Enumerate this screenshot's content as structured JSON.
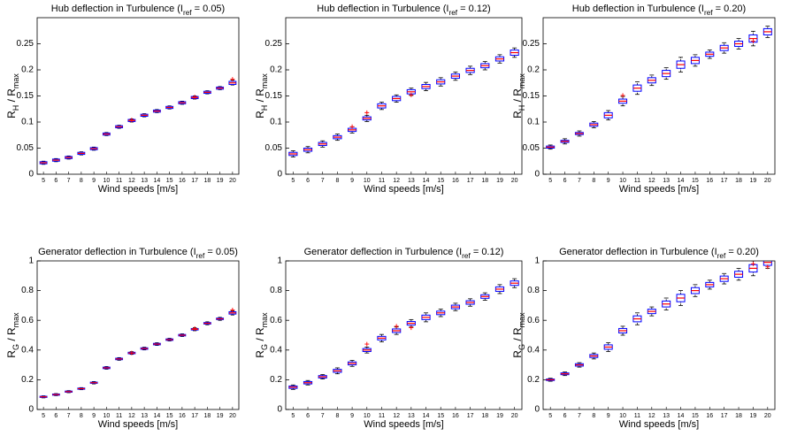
{
  "chart_data": [
    {
      "type": "box",
      "title": [
        "Hub deflection in Turbulence (I",
        "ref",
        " = 0.05)"
      ],
      "xlabel": "Wind speeds [m/s]",
      "ylabel": [
        "R",
        "H",
        " / R",
        "max"
      ],
      "categories": [
        5,
        6,
        7,
        8,
        9,
        10,
        11,
        12,
        13,
        14,
        15,
        16,
        17,
        18,
        19,
        20
      ],
      "boxes": [
        [
          0.019,
          0.02,
          0.022,
          0.024,
          0.025
        ],
        [
          0.024,
          0.025,
          0.027,
          0.029,
          0.03
        ],
        [
          0.029,
          0.03,
          0.032,
          0.034,
          0.035
        ],
        [
          0.037,
          0.038,
          0.04,
          0.042,
          0.043
        ],
        [
          0.046,
          0.047,
          0.049,
          0.051,
          0.052
        ],
        [
          0.074,
          0.075,
          0.077,
          0.079,
          0.08
        ],
        [
          0.088,
          0.089,
          0.091,
          0.093,
          0.094
        ],
        [
          0.1,
          0.101,
          0.103,
          0.105,
          0.106
        ],
        [
          0.11,
          0.111,
          0.113,
          0.115,
          0.116
        ],
        [
          0.118,
          0.119,
          0.121,
          0.123,
          0.124
        ],
        [
          0.125,
          0.126,
          0.128,
          0.13,
          0.131
        ],
        [
          0.134,
          0.135,
          0.137,
          0.139,
          0.14
        ],
        [
          0.144,
          0.145,
          0.147,
          0.149,
          0.15
        ],
        [
          0.154,
          0.155,
          0.157,
          0.159,
          0.16
        ],
        [
          0.162,
          0.163,
          0.165,
          0.167,
          0.168
        ],
        [
          0.171,
          0.172,
          0.175,
          0.178,
          0.18
        ]
      ],
      "outliers": {
        "categories": [
          12,
          17,
          20
        ],
        "values": [
          0.104,
          0.148,
          0.182
        ]
      },
      "ylim": [
        0,
        0.3
      ],
      "yticks": [
        0,
        0.05,
        0.1,
        0.15,
        0.2,
        0.25
      ],
      "box_color": "#0000ff",
      "median_color": "#ff0000",
      "whisker_color": "#000000",
      "outlier_color": "#ff0000"
    },
    {
      "type": "box",
      "title": [
        "Hub deflection in Turbulence (I",
        "ref",
        " = 0.12)"
      ],
      "xlabel": "Wind speeds [m/s]",
      "ylabel": [
        "R",
        "H",
        " / R",
        "max"
      ],
      "categories": [
        5,
        6,
        7,
        8,
        9,
        10,
        11,
        12,
        13,
        14,
        15,
        16,
        17,
        18,
        19,
        20
      ],
      "boxes": [
        [
          0.033,
          0.036,
          0.039,
          0.042,
          0.045
        ],
        [
          0.041,
          0.044,
          0.047,
          0.05,
          0.053
        ],
        [
          0.052,
          0.055,
          0.058,
          0.061,
          0.064
        ],
        [
          0.065,
          0.068,
          0.071,
          0.074,
          0.077
        ],
        [
          0.079,
          0.082,
          0.085,
          0.088,
          0.091
        ],
        [
          0.101,
          0.104,
          0.107,
          0.11,
          0.113
        ],
        [
          0.124,
          0.127,
          0.131,
          0.135,
          0.138
        ],
        [
          0.138,
          0.141,
          0.145,
          0.149,
          0.152
        ],
        [
          0.151,
          0.154,
          0.158,
          0.162,
          0.165
        ],
        [
          0.16,
          0.164,
          0.168,
          0.172,
          0.176
        ],
        [
          0.169,
          0.173,
          0.177,
          0.181,
          0.185
        ],
        [
          0.18,
          0.184,
          0.188,
          0.192,
          0.196
        ],
        [
          0.191,
          0.195,
          0.199,
          0.203,
          0.207
        ],
        [
          0.2,
          0.204,
          0.208,
          0.212,
          0.216
        ],
        [
          0.213,
          0.217,
          0.221,
          0.225,
          0.229
        ],
        [
          0.224,
          0.228,
          0.233,
          0.238,
          0.242
        ]
      ],
      "outliers": {
        "categories": [
          9,
          10,
          13
        ],
        "values": [
          0.091,
          0.118,
          0.152
        ]
      },
      "ylim": [
        0,
        0.3
      ],
      "yticks": [
        0,
        0.05,
        0.1,
        0.15,
        0.2,
        0.25
      ],
      "box_color": "#0000ff",
      "median_color": "#ff0000",
      "whisker_color": "#000000",
      "outlier_color": "#ff0000"
    },
    {
      "type": "box",
      "title": [
        "Hub deflection in Turbulence (I",
        "ref",
        " = 0.20)"
      ],
      "xlabel": "Wind speeds [m/s]",
      "ylabel": [
        "R",
        "H",
        " / R",
        "max"
      ],
      "categories": [
        5,
        6,
        7,
        8,
        9,
        10,
        11,
        12,
        13,
        14,
        15,
        16,
        17,
        18,
        19,
        20
      ],
      "boxes": [
        [
          0.048,
          0.05,
          0.052,
          0.054,
          0.056
        ],
        [
          0.058,
          0.061,
          0.063,
          0.065,
          0.068
        ],
        [
          0.073,
          0.076,
          0.078,
          0.08,
          0.083
        ],
        [
          0.089,
          0.092,
          0.095,
          0.098,
          0.101
        ],
        [
          0.104,
          0.108,
          0.113,
          0.118,
          0.122
        ],
        [
          0.131,
          0.136,
          0.14,
          0.144,
          0.149
        ],
        [
          0.153,
          0.159,
          0.165,
          0.171,
          0.177
        ],
        [
          0.17,
          0.175,
          0.18,
          0.185,
          0.19
        ],
        [
          0.182,
          0.187,
          0.193,
          0.199,
          0.204
        ],
        [
          0.196,
          0.203,
          0.21,
          0.217,
          0.224
        ],
        [
          0.207,
          0.212,
          0.218,
          0.224,
          0.229
        ],
        [
          0.222,
          0.226,
          0.23,
          0.234,
          0.238
        ],
        [
          0.232,
          0.237,
          0.242,
          0.247,
          0.252
        ],
        [
          0.24,
          0.245,
          0.25,
          0.255,
          0.26
        ],
        [
          0.246,
          0.253,
          0.26,
          0.267,
          0.274
        ],
        [
          0.262,
          0.267,
          0.273,
          0.279,
          0.284
        ]
      ],
      "outliers": {
        "categories": [
          10,
          19
        ],
        "values": [
          0.151,
          0.255
        ]
      },
      "ylim": [
        0,
        0.3
      ],
      "yticks": [
        0,
        0.05,
        0.1,
        0.15,
        0.2,
        0.25
      ],
      "box_color": "#0000ff",
      "median_color": "#ff0000",
      "whisker_color": "#000000",
      "outlier_color": "#ff0000"
    },
    {
      "type": "box",
      "title": [
        "Generator deflection in Turbulence (I",
        "ref",
        " = 0.05)"
      ],
      "xlabel": "Wind speeds [m/s]",
      "ylabel": [
        "R",
        "G",
        " / R",
        "max"
      ],
      "categories": [
        5,
        6,
        7,
        8,
        9,
        10,
        11,
        12,
        13,
        14,
        15,
        16,
        17,
        18,
        19,
        20
      ],
      "boxes": [
        [
          0.078,
          0.081,
          0.085,
          0.089,
          0.092
        ],
        [
          0.093,
          0.096,
          0.1,
          0.104,
          0.107
        ],
        [
          0.113,
          0.116,
          0.12,
          0.124,
          0.127
        ],
        [
          0.133,
          0.136,
          0.14,
          0.144,
          0.147
        ],
        [
          0.172,
          0.176,
          0.18,
          0.184,
          0.188
        ],
        [
          0.271,
          0.275,
          0.28,
          0.285,
          0.289
        ],
        [
          0.331,
          0.335,
          0.34,
          0.345,
          0.349
        ],
        [
          0.371,
          0.375,
          0.38,
          0.385,
          0.389
        ],
        [
          0.401,
          0.405,
          0.41,
          0.415,
          0.419
        ],
        [
          0.431,
          0.435,
          0.44,
          0.445,
          0.449
        ],
        [
          0.461,
          0.465,
          0.47,
          0.475,
          0.479
        ],
        [
          0.491,
          0.495,
          0.5,
          0.505,
          0.509
        ],
        [
          0.53,
          0.535,
          0.54,
          0.545,
          0.55
        ],
        [
          0.57,
          0.575,
          0.58,
          0.585,
          0.59
        ],
        [
          0.6,
          0.605,
          0.61,
          0.615,
          0.62
        ],
        [
          0.636,
          0.642,
          0.65,
          0.658,
          0.664
        ]
      ],
      "outliers": {
        "categories": [
          12,
          17,
          20
        ],
        "values": [
          0.38,
          0.545,
          0.67
        ]
      },
      "ylim": [
        0,
        1
      ],
      "yticks": [
        0,
        0.2,
        0.4,
        0.6,
        0.8,
        1
      ],
      "box_color": "#0000ff",
      "median_color": "#ff0000",
      "whisker_color": "#000000",
      "outlier_color": "#ff0000"
    },
    {
      "type": "box",
      "title": [
        "Generator deflection in Turbulence (I",
        "ref",
        " = 0.12)"
      ],
      "xlabel": "Wind speeds [m/s]",
      "ylabel": [
        "R",
        "G",
        " / R",
        "max"
      ],
      "categories": [
        5,
        6,
        7,
        8,
        9,
        10,
        11,
        12,
        13,
        14,
        15,
        16,
        17,
        18,
        19,
        20
      ],
      "boxes": [
        [
          0.135,
          0.142,
          0.15,
          0.158,
          0.165
        ],
        [
          0.165,
          0.172,
          0.18,
          0.188,
          0.195
        ],
        [
          0.205,
          0.212,
          0.22,
          0.228,
          0.235
        ],
        [
          0.24,
          0.25,
          0.26,
          0.27,
          0.28
        ],
        [
          0.29,
          0.3,
          0.31,
          0.32,
          0.33
        ],
        [
          0.38,
          0.39,
          0.4,
          0.41,
          0.42
        ],
        [
          0.455,
          0.468,
          0.48,
          0.492,
          0.505
        ],
        [
          0.505,
          0.518,
          0.53,
          0.542,
          0.555
        ],
        [
          0.555,
          0.568,
          0.58,
          0.592,
          0.605
        ],
        [
          0.59,
          0.605,
          0.62,
          0.635,
          0.65
        ],
        [
          0.625,
          0.638,
          0.65,
          0.662,
          0.675
        ],
        [
          0.665,
          0.678,
          0.69,
          0.702,
          0.715
        ],
        [
          0.695,
          0.708,
          0.72,
          0.732,
          0.745
        ],
        [
          0.735,
          0.748,
          0.76,
          0.772,
          0.785
        ],
        [
          0.78,
          0.795,
          0.81,
          0.825,
          0.84
        ],
        [
          0.82,
          0.835,
          0.85,
          0.865,
          0.88
        ]
      ],
      "outliers": {
        "categories": [
          10,
          12,
          13
        ],
        "values": [
          0.44,
          0.56,
          0.55
        ]
      },
      "ylim": [
        0,
        1
      ],
      "yticks": [
        0,
        0.2,
        0.4,
        0.6,
        0.8,
        1
      ],
      "box_color": "#0000ff",
      "median_color": "#ff0000",
      "whisker_color": "#000000",
      "outlier_color": "#ff0000"
    },
    {
      "type": "box",
      "title": [
        "Generator deflection in Turbulence (I",
        "ref",
        " = 0.20)"
      ],
      "xlabel": "Wind speeds [m/s]",
      "ylabel": [
        "R",
        "G",
        " / R",
        "max"
      ],
      "categories": [
        5,
        6,
        7,
        8,
        9,
        10,
        11,
        12,
        13,
        14,
        15,
        16,
        17,
        18,
        19,
        20
      ],
      "boxes": [
        [
          0.19,
          0.195,
          0.2,
          0.205,
          0.21
        ],
        [
          0.228,
          0.234,
          0.24,
          0.246,
          0.252
        ],
        [
          0.285,
          0.292,
          0.3,
          0.308,
          0.315
        ],
        [
          0.34,
          0.35,
          0.36,
          0.37,
          0.38
        ],
        [
          0.39,
          0.405,
          0.42,
          0.435,
          0.45
        ],
        [
          0.5,
          0.515,
          0.53,
          0.545,
          0.56
        ],
        [
          0.57,
          0.59,
          0.61,
          0.63,
          0.65
        ],
        [
          0.63,
          0.645,
          0.66,
          0.675,
          0.69
        ],
        [
          0.67,
          0.69,
          0.71,
          0.73,
          0.75
        ],
        [
          0.7,
          0.725,
          0.75,
          0.775,
          0.8
        ],
        [
          0.76,
          0.78,
          0.8,
          0.82,
          0.84
        ],
        [
          0.81,
          0.825,
          0.84,
          0.855,
          0.87
        ],
        [
          0.845,
          0.862,
          0.88,
          0.898,
          0.915
        ],
        [
          0.87,
          0.89,
          0.91,
          0.93,
          0.95
        ],
        [
          0.9,
          0.925,
          0.95,
          0.975,
          1.0
        ],
        [
          0.95,
          0.97,
          0.99,
          1.01,
          1.03
        ]
      ],
      "outliers": {
        "categories": [
          19,
          20
        ],
        "values": [
          0.98,
          0.96
        ]
      },
      "ylim": [
        0,
        1
      ],
      "yticks": [
        0,
        0.2,
        0.4,
        0.6,
        0.8,
        1
      ],
      "box_color": "#0000ff",
      "median_color": "#ff0000",
      "whisker_color": "#000000",
      "outlier_color": "#ff0000"
    }
  ]
}
